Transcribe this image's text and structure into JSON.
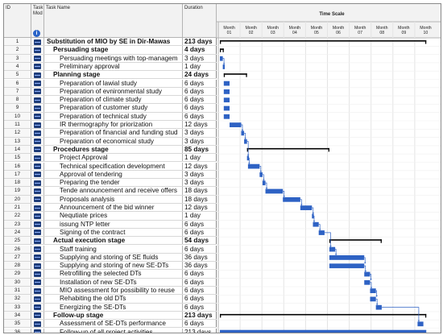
{
  "headers": {
    "id": "ID",
    "mode": "Task Mod",
    "name": "Task Name",
    "duration": "Duration"
  },
  "timescale": {
    "title": "Time Scale",
    "months": [
      "Month 01",
      "Month 02",
      "Month 03",
      "Month 04",
      "Month 05",
      "Month 06",
      "Month 07",
      "Month 08",
      "Month 09",
      "Month 10"
    ]
  },
  "tasks": [
    {
      "id": "1",
      "name": "Substitution of MIO by SE in Dir-Mawas",
      "duration": "213 days",
      "level": 0,
      "summary": true
    },
    {
      "id": "2",
      "name": "Persuading stage",
      "duration": "4 days",
      "level": 1,
      "summary": true
    },
    {
      "id": "3",
      "name": "Persuading meetings with top-managem",
      "duration": "3 days",
      "level": 2,
      "summary": false
    },
    {
      "id": "4",
      "name": "Preliminary approval",
      "duration": "1 day",
      "level": 2,
      "summary": false
    },
    {
      "id": "5",
      "name": "Planning stage",
      "duration": "24 days",
      "level": 1,
      "summary": true
    },
    {
      "id": "6",
      "name": "Preparation of lawial study",
      "duration": "6 days",
      "level": 2,
      "summary": false
    },
    {
      "id": "7",
      "name": "Preparation of evnironmental study",
      "duration": "6 days",
      "level": 2,
      "summary": false
    },
    {
      "id": "8",
      "name": "Preparation of climate study",
      "duration": "6 days",
      "level": 2,
      "summary": false
    },
    {
      "id": "9",
      "name": "Preparation of customer study",
      "duration": "6 days",
      "level": 2,
      "summary": false
    },
    {
      "id": "10",
      "name": "Preparation of technical study",
      "duration": "6 days",
      "level": 2,
      "summary": false
    },
    {
      "id": "11",
      "name": "IR thermography for priorization",
      "duration": "12 days",
      "level": 2,
      "summary": false
    },
    {
      "id": "12",
      "name": "Preparation of financial and funding stud",
      "duration": "3 days",
      "level": 2,
      "summary": false
    },
    {
      "id": "13",
      "name": "Preparation of economical study",
      "duration": "3 days",
      "level": 2,
      "summary": false
    },
    {
      "id": "14",
      "name": "Procedures stage",
      "duration": "85 days",
      "level": 1,
      "summary": true
    },
    {
      "id": "15",
      "name": "Project Approval",
      "duration": "1 day",
      "level": 2,
      "summary": false
    },
    {
      "id": "16",
      "name": "Technical specification development",
      "duration": "12 days",
      "level": 2,
      "summary": false
    },
    {
      "id": "17",
      "name": "Approval of tendering",
      "duration": "3 days",
      "level": 2,
      "summary": false
    },
    {
      "id": "18",
      "name": "Preparing the tender",
      "duration": "3 days",
      "level": 2,
      "summary": false
    },
    {
      "id": "19",
      "name": "Tende announcement and receive offers",
      "duration": "18 days",
      "level": 2,
      "summary": false
    },
    {
      "id": "20",
      "name": "Proposals analysis",
      "duration": "18 days",
      "level": 2,
      "summary": false
    },
    {
      "id": "21",
      "name": "Announcement of the bid winner",
      "duration": "12 days",
      "level": 2,
      "summary": false
    },
    {
      "id": "22",
      "name": "Nequtiate prices",
      "duration": "1 day",
      "level": 2,
      "summary": false
    },
    {
      "id": "23",
      "name": "issung NTP letter",
      "duration": "6 days",
      "level": 2,
      "summary": false
    },
    {
      "id": "24",
      "name": "Signing of the contract",
      "duration": "6 days",
      "level": 2,
      "summary": false
    },
    {
      "id": "25",
      "name": "Actual execution stage",
      "duration": "54 days",
      "level": 1,
      "summary": true
    },
    {
      "id": "26",
      "name": "Staff training",
      "duration": "6 days",
      "level": 2,
      "summary": false
    },
    {
      "id": "27",
      "name": "Supplying and storing of SE fluids",
      "duration": "36 days",
      "level": 2,
      "summary": false
    },
    {
      "id": "28",
      "name": "Supplying and storing of new SE-DTs",
      "duration": "36 days",
      "level": 2,
      "summary": false
    },
    {
      "id": "29",
      "name": "Retrofilling the selected DTs",
      "duration": "6 days",
      "level": 2,
      "summary": false
    },
    {
      "id": "30",
      "name": "Installation of new SE-DTs",
      "duration": "6 days",
      "level": 2,
      "summary": false
    },
    {
      "id": "31",
      "name": "MIO assessment for possibility to reuse",
      "duration": "6 days",
      "level": 2,
      "summary": false
    },
    {
      "id": "32",
      "name": "Rehabiting the old DTs",
      "duration": "6 days",
      "level": 2,
      "summary": false
    },
    {
      "id": "33",
      "name": "Energizing the SE-DTs",
      "duration": "6 days",
      "level": 2,
      "summary": false
    },
    {
      "id": "34",
      "name": "Follow-up stage",
      "duration": "213 days",
      "level": 1,
      "summary": true
    },
    {
      "id": "35",
      "name": "Assessment of SE-DTs performance",
      "duration": "6 days",
      "level": 2,
      "summary": false
    },
    {
      "id": "36",
      "name": "Follow-up of all project activities",
      "duration": "213 days",
      "level": 2,
      "summary": false
    }
  ],
  "colors": {
    "bar": "#2e62c4",
    "summary": "#000000",
    "link": "#2e62c4"
  }
}
